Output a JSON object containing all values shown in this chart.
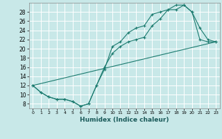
{
  "title": "",
  "xlabel": "Humidex (Indice chaleur)",
  "background_color": "#c8e8e8",
  "grid_color": "#ffffff",
  "line_color": "#1a7a6e",
  "xlim": [
    -0.5,
    23.5
  ],
  "ylim": [
    7,
    30
  ],
  "xticks": [
    0,
    1,
    2,
    3,
    4,
    5,
    6,
    7,
    8,
    9,
    10,
    11,
    12,
    13,
    14,
    15,
    16,
    17,
    18,
    19,
    20,
    21,
    22,
    23
  ],
  "yticks": [
    8,
    10,
    12,
    14,
    16,
    18,
    20,
    22,
    24,
    26,
    28
  ],
  "line1_x": [
    0,
    1,
    2,
    3,
    4,
    5,
    6,
    7,
    8,
    9,
    10,
    11,
    12,
    13,
    14,
    15,
    16,
    17,
    18,
    19,
    20,
    21,
    22,
    23
  ],
  "line1_y": [
    12,
    10.5,
    9.5,
    9,
    9,
    8.5,
    7.5,
    8,
    12,
    15.5,
    20.5,
    21.5,
    23.5,
    24.5,
    25,
    27.5,
    28,
    28.5,
    29.5,
    29.5,
    28,
    24.5,
    22,
    21.5
  ],
  "line2_x": [
    0,
    1,
    2,
    3,
    4,
    5,
    6,
    7,
    8,
    9,
    10,
    11,
    12,
    13,
    14,
    15,
    16,
    17,
    18,
    19,
    20,
    21,
    22,
    23
  ],
  "line2_y": [
    12,
    10.5,
    9.5,
    9,
    9,
    8.5,
    7.5,
    8,
    12,
    16,
    19,
    20.5,
    21.5,
    22,
    22.5,
    25,
    26.5,
    28.5,
    28.5,
    29.5,
    28,
    22,
    21.5,
    21.5
  ],
  "line3_x": [
    0,
    23
  ],
  "line3_y": [
    12,
    21.5
  ]
}
